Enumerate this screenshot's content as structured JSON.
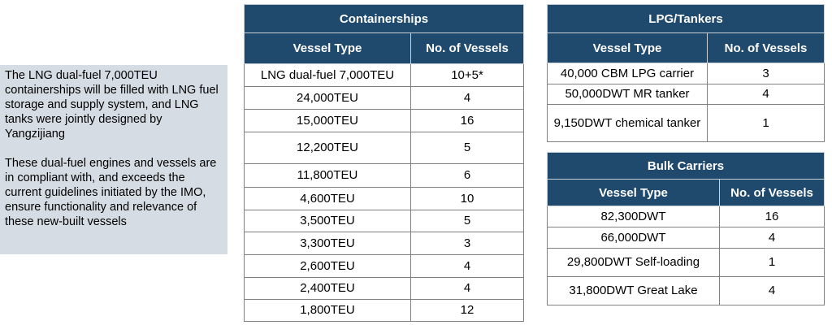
{
  "note": {
    "paragraphs": [
      "The LNG dual-fuel 7,000TEU containerships will be filled with LNG fuel storage and supply system, and LNG tanks were jointly designed by Yangzijiang",
      "These dual-fuel engines and vessels are in compliant with, and exceeds the current guidelines initiated by the IMO, ensure functionality and relevance of these new-built vessels"
    ]
  },
  "tables": [
    {
      "title": "Containerships",
      "headers": [
        "Vessel Type",
        "No. of Vessels"
      ],
      "rows": [
        [
          "LNG dual-fuel 7,000TEU",
          "10+5*"
        ],
        [
          "24,000TEU",
          4
        ],
        [
          "15,000TEU",
          16
        ],
        [
          "12,200TEU",
          5
        ],
        [
          "11,800TEU",
          6
        ],
        [
          "4,600TEU",
          10
        ],
        [
          "3,500TEU",
          5
        ],
        [
          "3,300TEU",
          3
        ],
        [
          "2,600TEU",
          4
        ],
        [
          "2,400TEU",
          4
        ],
        [
          "1,800TEU",
          12
        ]
      ]
    },
    {
      "title": "LPG/Tankers",
      "headers": [
        "Vessel Type",
        "No. of Vessels"
      ],
      "rows": [
        [
          "40,000 CBM LPG carrier",
          3
        ],
        [
          "50,000DWT MR tanker",
          4
        ],
        [
          "9,150DWT chemical tanker",
          1
        ]
      ]
    },
    {
      "title": "Bulk Carriers",
      "headers": [
        "Vessel Type",
        "No. of Vessels"
      ],
      "rows": [
        [
          "82,300DWT",
          16
        ],
        [
          "66,000DWT",
          4
        ],
        [
          "29,800DWT Self-loading",
          1
        ],
        [
          "31,800DWT Great Lake",
          4
        ]
      ]
    }
  ]
}
